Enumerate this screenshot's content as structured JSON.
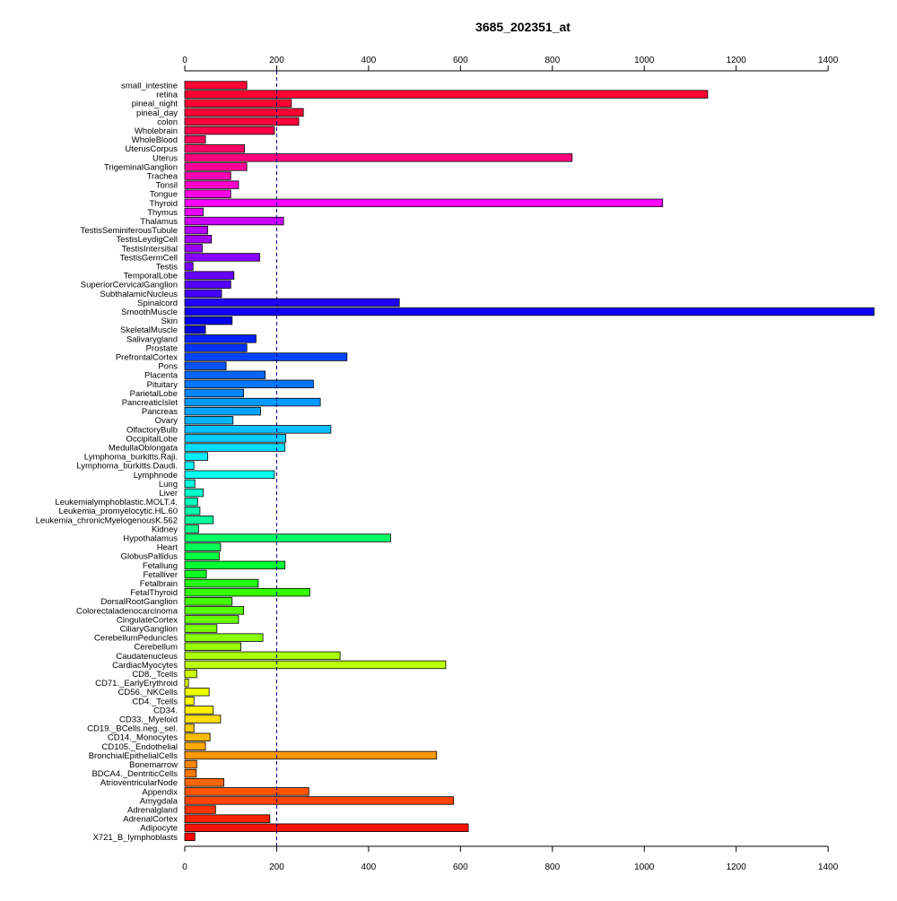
{
  "chart_data": {
    "type": "bar",
    "orientation": "horizontal",
    "title": "3685_202351_at",
    "xlabel": "",
    "ylabel": "",
    "xlim": [
      0,
      1500
    ],
    "x_ticks": [
      0,
      200,
      400,
      600,
      800,
      1000,
      1200,
      1400
    ],
    "reference_line": 200,
    "grid": false,
    "legend": "none",
    "categories": [
      "small_intestine",
      "retina",
      "pineal_night",
      "pineal_day",
      "colon",
      "Wholebrain",
      "WholeBlood",
      "UterusCorpus",
      "Uterus",
      "TrigeminalGanglion",
      "Trachea",
      "Tonsil",
      "Tongue",
      "Thyroid",
      "Thymus",
      "Thalamus",
      "TestisSeminiferousTubule",
      "TestisLeydigCell",
      "TestisIntersitial",
      "TestisGermCell",
      "Testis",
      "TemporalLobe",
      "SuperiorCervicalGanglion",
      "SubthalamicNucleus",
      "Spinalcord",
      "SmoothMuscle",
      "Skin",
      "SkeletalMuscle",
      "Salivarygland",
      "Prostate",
      "PrefrontalCortex",
      "Pons",
      "Placenta",
      "Pituitary",
      "ParietalLobe",
      "PancreaticIslet",
      "Pancreas",
      "Ovary",
      "OlfactoryBulb",
      "OccipitalLobe",
      "MedullaOblongata",
      "Lymphoma_burkitts.Raji.",
      "Lymphoma_burkitts.Daudi.",
      "Lymphnode",
      "Lung",
      "Liver",
      "Leukemialymphoblastic.MOLT.4.",
      "Leukemia_promyelocytic.HL.60",
      "Leukemia_chronicMyelogenousK.562",
      "Kidney",
      "Hypothalamus",
      "Heart",
      "GlobusPallidus",
      "Fetallung",
      "Fetalliver",
      "Fetalbrain",
      "FetalThyroid",
      "DorsalRootGanglion",
      "Colorectaladenocarcinoma",
      "CingulateCortex",
      "CiliaryGanglion",
      "CerebellumPeduncles",
      "Cerebellum",
      "Caudatenucleus",
      "CardiacMyocytes",
      "CD8._Tcells",
      "CD71._EarlyErythroid",
      "CD56._NKCells",
      "CD4._Tcells",
      "CD34.",
      "CD33._Myeloid",
      "CD19._BCells.neg._sel.",
      "CD14._Monocytes",
      "CD105._Endothelial",
      "BronchialEpithelialCells",
      "Bonemarrow",
      "BDCA4._DentriticCells",
      "AtrioventricularNode",
      "Appendix",
      "Amygdala",
      "Adrenalgland",
      "AdrenalCortex",
      "Adipocyte",
      "X721_B_lymphoblasts"
    ],
    "values": [
      135,
      1138,
      232,
      258,
      248,
      195,
      45,
      130,
      843,
      135,
      100,
      117,
      100,
      1040,
      40,
      215,
      50,
      58,
      38,
      163,
      18,
      107,
      100,
      80,
      467,
      1500,
      103,
      45,
      155,
      135,
      353,
      90,
      175,
      280,
      128,
      295,
      165,
      105,
      318,
      220,
      218,
      50,
      20,
      195,
      22,
      40,
      28,
      33,
      62,
      30,
      448,
      78,
      75,
      218,
      47,
      160,
      272,
      103,
      128,
      117,
      70,
      170,
      122,
      338,
      568,
      26,
      8,
      53,
      20,
      62,
      78,
      20,
      55,
      45,
      548,
      26,
      25,
      85,
      270,
      585,
      67,
      185,
      617,
      22
    ],
    "bar_colors": [
      "#ff0033",
      "#ff0033",
      "#ff0033",
      "#ff0033",
      "#ff0040",
      "#ff004d",
      "#ff0059",
      "#ff0066",
      "#ff0080",
      "#ff0099",
      "#ff00b3",
      "#ff00cc",
      "#ff00e6",
      "#ff00ff",
      "#e600ff",
      "#cc00ff",
      "#b300ff",
      "#a300ff",
      "#9900ff",
      "#8800ff",
      "#7700ff",
      "#6600ff",
      "#5500ff",
      "#4400ff",
      "#2200ff",
      "#1100ff",
      "#0000ee",
      "#0000dd",
      "#0022ff",
      "#0033ff",
      "#0044ff",
      "#0055ff",
      "#0066ff",
      "#0077ff",
      "#0088ff",
      "#0099ff",
      "#00a3ff",
      "#00b3ff",
      "#00c0ff",
      "#00ccff",
      "#00ddff",
      "#00eeff",
      "#00f5ff",
      "#00ffee",
      "#00ffdd",
      "#00ffcc",
      "#00ffbb",
      "#00ffaa",
      "#00ff99",
      "#00ff88",
      "#00ff66",
      "#00ff55",
      "#00ff44",
      "#00ff33",
      "#11ff22",
      "#22ff11",
      "#33ff00",
      "#44ff00",
      "#55ff00",
      "#66ff00",
      "#77ff00",
      "#88ff00",
      "#99ff00",
      "#aaff00",
      "#bbff00",
      "#ccff00",
      "#ddff00",
      "#eeff00",
      "#ffff00",
      "#ffee00",
      "#ffdd00",
      "#ffcc00",
      "#ffbb00",
      "#ffaa00",
      "#ff9900",
      "#ff8800",
      "#ff7700",
      "#ff6600",
      "#ff5500",
      "#ff4400",
      "#ff3300",
      "#ff2200",
      "#ff1100",
      "#ff0000"
    ]
  }
}
